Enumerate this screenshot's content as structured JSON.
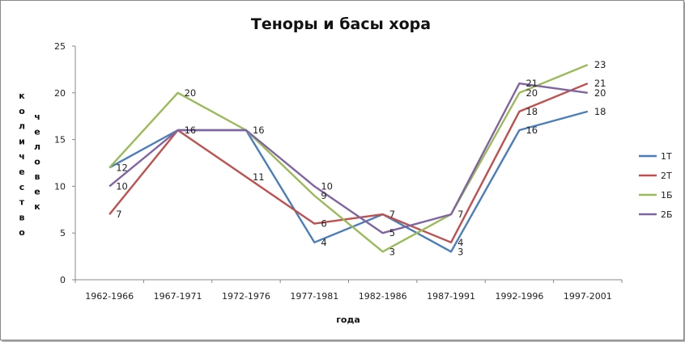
{
  "chart_data": {
    "type": "line",
    "title": "Теноры и басы хора",
    "xlabel": "года",
    "ylabel_col1": "количество",
    "ylabel_col2": "человек",
    "categories": [
      "1962-1966",
      "1967-1971",
      "1972-1976",
      "1977-1981",
      "1982-1986",
      "1987-1991",
      "1992-1996",
      "1997-2001"
    ],
    "ylim": [
      0,
      25
    ],
    "yticks": [
      "0",
      "5",
      "10",
      "15",
      "20",
      "25"
    ],
    "grid": false,
    "legend_position": "right",
    "series": [
      {
        "name": "1Т",
        "color": "#4a7ebb",
        "values": [
          12,
          16,
          16,
          4,
          7,
          3,
          16,
          18
        ]
      },
      {
        "name": "2Т",
        "color": "#c0504d",
        "values": [
          7,
          16,
          11,
          6,
          7,
          4,
          18,
          21
        ]
      },
      {
        "name": "1Б",
        "color": "#9bbb59",
        "values": [
          12,
          20,
          16,
          9,
          3,
          7,
          20,
          23
        ]
      },
      {
        "name": "2Б",
        "color": "#8064a2",
        "values": [
          10,
          16,
          16,
          10,
          5,
          7,
          21,
          20
        ]
      }
    ],
    "data_labels": [
      {
        "category": 0,
        "value": 12,
        "text": "12"
      },
      {
        "category": 0,
        "value": 10,
        "text": "10"
      },
      {
        "category": 0,
        "value": 7,
        "text": "7"
      },
      {
        "category": 1,
        "value": 20,
        "text": "20"
      },
      {
        "category": 1,
        "value": 16,
        "text": "16"
      },
      {
        "category": 2,
        "value": 16,
        "text": "16"
      },
      {
        "category": 2,
        "value": 11,
        "text": "11"
      },
      {
        "category": 3,
        "value": 10,
        "text": "10"
      },
      {
        "category": 3,
        "value": 9,
        "text": "9"
      },
      {
        "category": 3,
        "value": 6,
        "text": "6"
      },
      {
        "category": 3,
        "value": 4,
        "text": "4"
      },
      {
        "category": 4,
        "value": 7,
        "text": "7"
      },
      {
        "category": 4,
        "value": 5,
        "text": "5"
      },
      {
        "category": 4,
        "value": 3,
        "text": "3"
      },
      {
        "category": 5,
        "value": 7,
        "text": "7"
      },
      {
        "category": 5,
        "value": 4,
        "text": "4"
      },
      {
        "category": 5,
        "value": 3,
        "text": "3"
      },
      {
        "category": 6,
        "value": 21,
        "text": "21"
      },
      {
        "category": 6,
        "value": 20,
        "text": "20"
      },
      {
        "category": 6,
        "value": 18,
        "text": "18"
      },
      {
        "category": 6,
        "value": 16,
        "text": "16"
      },
      {
        "category": 7,
        "value": 23,
        "text": "23"
      },
      {
        "category": 7,
        "value": 21,
        "text": "21"
      },
      {
        "category": 7,
        "value": 20,
        "text": "20"
      },
      {
        "category": 7,
        "value": 18,
        "text": "18"
      }
    ]
  }
}
